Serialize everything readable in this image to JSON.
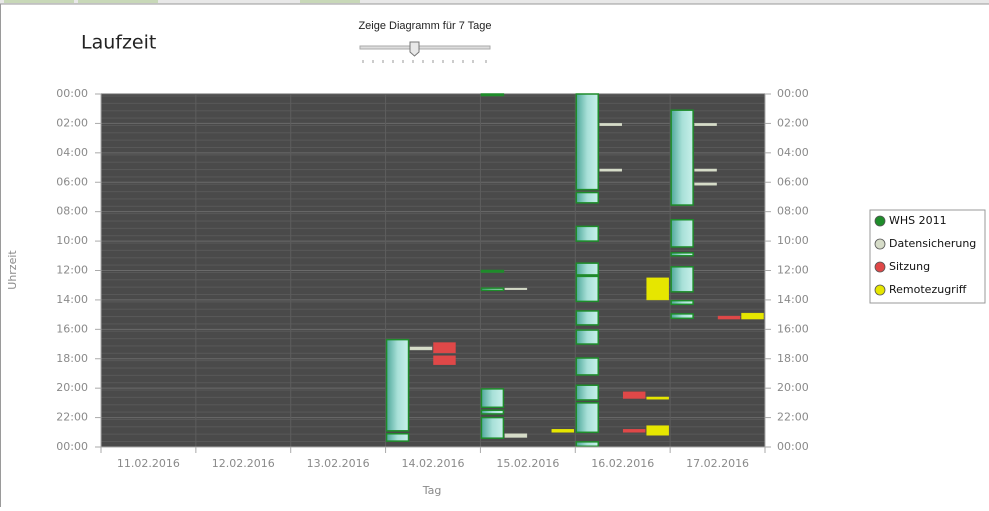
{
  "chart_data": {
    "type": "range",
    "title": "Laufzeit",
    "slider_label": "Zeige Diagramm für 7 Tage",
    "x_label": "Tag",
    "y_label": "Uhrzeit",
    "categories": [
      "11.02.2016",
      "12.02.2016",
      "13.02.2016",
      "14.02.2016",
      "15.02.2016",
      "16.02.2016",
      "17.02.2016"
    ],
    "ylim": [
      0,
      24
    ],
    "y_inverted": true,
    "grid": true,
    "legend": "right",
    "yticks": [
      {
        "value": 0,
        "label": "00:00"
      },
      {
        "value": 2,
        "label": "02:00"
      },
      {
        "value": 4,
        "label": "04:00"
      },
      {
        "value": 6,
        "label": "06:00"
      },
      {
        "value": 8,
        "label": "08:00"
      },
      {
        "value": 10,
        "label": "10:00"
      },
      {
        "value": 12,
        "label": "12:00"
      },
      {
        "value": 14,
        "label": "14:00"
      },
      {
        "value": 16,
        "label": "16:00"
      },
      {
        "value": 18,
        "label": "18:00"
      },
      {
        "value": 20,
        "label": "20:00"
      },
      {
        "value": 22,
        "label": "22:00"
      },
      {
        "value": 24,
        "label": "00:00"
      }
    ],
    "series": [
      {
        "name": "WHS 2011",
        "color": "#1e8c2a",
        "values": [
          {
            "day": "14.02.2016",
            "start": 16.7,
            "end": 22.9
          },
          {
            "day": "14.02.2016",
            "start": 23.1,
            "end": 23.6
          },
          {
            "day": "15.02.2016",
            "start": 0,
            "end": 0.1
          },
          {
            "day": "15.02.2016",
            "start": 12.0,
            "end": 12.1
          },
          {
            "day": "15.02.2016",
            "start": 13.2,
            "end": 13.35
          },
          {
            "day": "15.02.2016",
            "start": 20.05,
            "end": 21.3
          },
          {
            "day": "15.02.2016",
            "start": 21.5,
            "end": 21.75
          },
          {
            "day": "15.02.2016",
            "start": 22.0,
            "end": 23.4
          },
          {
            "day": "16.02.2016",
            "start": 0,
            "end": 6.5
          },
          {
            "day": "16.02.2016",
            "start": 6.7,
            "end": 7.4
          },
          {
            "day": "16.02.2016",
            "start": 9.0,
            "end": 10.0
          },
          {
            "day": "16.02.2016",
            "start": 11.5,
            "end": 12.3
          },
          {
            "day": "16.02.2016",
            "start": 12.4,
            "end": 14.1
          },
          {
            "day": "16.02.2016",
            "start": 14.75,
            "end": 15.7
          },
          {
            "day": "16.02.2016",
            "start": 16.05,
            "end": 17.0
          },
          {
            "day": "16.02.2016",
            "start": 17.95,
            "end": 19.1
          },
          {
            "day": "16.02.2016",
            "start": 19.8,
            "end": 20.8
          },
          {
            "day": "16.02.2016",
            "start": 21.0,
            "end": 23.0
          },
          {
            "day": "16.02.2016",
            "start": 23.65,
            "end": 23.95
          },
          {
            "day": "17.02.2016",
            "start": 1.1,
            "end": 7.55
          },
          {
            "day": "17.02.2016",
            "start": 8.55,
            "end": 10.4
          },
          {
            "day": "17.02.2016",
            "start": 10.8,
            "end": 11.0
          },
          {
            "day": "17.02.2016",
            "start": 11.75,
            "end": 13.45
          },
          {
            "day": "17.02.2016",
            "start": 14.05,
            "end": 14.3
          },
          {
            "day": "17.02.2016",
            "start": 14.95,
            "end": 15.25
          }
        ]
      },
      {
        "name": "Datensicherung",
        "color": "#d6dcc8",
        "values": [
          {
            "day": "14.02.2016",
            "start": 17.2,
            "end": 17.4
          },
          {
            "day": "15.02.2016",
            "start": 13.2,
            "end": 13.3
          },
          {
            "day": "15.02.2016",
            "start": 23.1,
            "end": 23.35
          },
          {
            "day": "16.02.2016",
            "start": 2.0,
            "end": 2.15
          },
          {
            "day": "16.02.2016",
            "start": 5.1,
            "end": 5.25
          },
          {
            "day": "17.02.2016",
            "start": 2.0,
            "end": 2.15
          },
          {
            "day": "17.02.2016",
            "start": 5.1,
            "end": 5.25
          },
          {
            "day": "17.02.2016",
            "start": 6.05,
            "end": 6.2
          }
        ]
      },
      {
        "name": "Sitzung",
        "color": "#e04848",
        "values": [
          {
            "day": "14.02.2016",
            "start": 16.9,
            "end": 17.6
          },
          {
            "day": "14.02.2016",
            "start": 17.8,
            "end": 18.4
          },
          {
            "day": "16.02.2016",
            "start": 20.25,
            "end": 20.7
          },
          {
            "day": "16.02.2016",
            "start": 22.8,
            "end": 23.0
          },
          {
            "day": "17.02.2016",
            "start": 15.1,
            "end": 15.3
          }
        ]
      },
      {
        "name": "Remotezugriff",
        "color": "#e6e600",
        "values": [
          {
            "day": "15.02.2016",
            "start": 22.8,
            "end": 23.0
          },
          {
            "day": "16.02.2016",
            "start": 12.5,
            "end": 14.0
          },
          {
            "day": "16.02.2016",
            "start": 20.6,
            "end": 20.75
          },
          {
            "day": "16.02.2016",
            "start": 22.55,
            "end": 23.2
          },
          {
            "day": "17.02.2016",
            "start": 14.9,
            "end": 15.3
          }
        ]
      }
    ]
  }
}
